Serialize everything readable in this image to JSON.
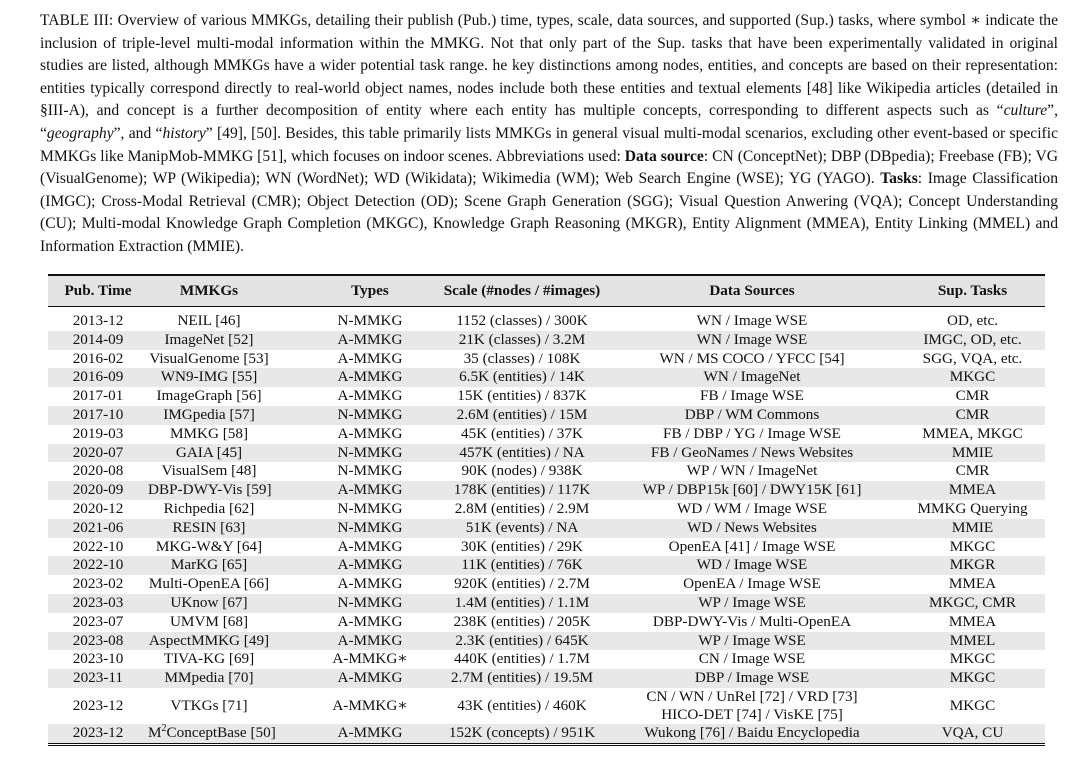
{
  "caption": {
    "label": "TABLE III:",
    "part1": " Overview of various MMKGs, detailing their publish (Pub.) time, types, scale, data sources, and supported (Sup.) tasks, where symbol ∗ indicate the inclusion of triple-level multi-modal information within the MMKG. Not that only part of the Sup. tasks that have been experimentally validated in original studies are listed, although MMKGs have a wider potential task range. he key distinctions among nodes, entities, and concepts are based on their representation: entities typically correspond directly to real-world object names, nodes include both these entities and textual elements [48] like Wikipedia articles (detailed in §III-A), and concept is a further decomposition of entity where each entity has multiple concepts, corresponding to different aspects such as “",
    "culture": "culture",
    "sep1": "”, “",
    "geography": "geography",
    "sep2": "”, and “",
    "history": "history",
    "part2": "” [49], [50]. Besides, this table primarily lists MMKGs in general visual multi-modal scenarios, excluding other event-based or specific MMKGs like ManipMob-MMKG [51], which focuses on indoor scenes. Abbreviations used: ",
    "data_source_label": "Data source",
    "part3": ": CN (ConceptNet); DBP (DBpedia); Freebase (FB); VG (VisualGenome); WP (Wikipedia); WN (WordNet); WD (Wikidata); Wikimedia (WM); Web Search Engine (WSE); YG (YAGO). ",
    "tasks_label": "Tasks",
    "part4": ": Image Classification (IMGC); Cross-Modal Retrieval (CMR); Object Detection (OD); Scene Graph Generation (SGG); Visual Question Anwering (VQA); Concept Understanding (CU); Multi-modal Knowledge Graph Completion (MKGC), Knowledge Graph Reasoning (MKGR), Entity Alignment (MMEA), Entity Linking (MMEL) and Information Extraction (MMIE)."
  },
  "table": {
    "headers": [
      "Pub. Time",
      "MMKGs",
      "Types",
      "Scale (#nodes / #images)",
      "Data Sources",
      "Sup. Tasks"
    ],
    "rows": [
      [
        "2013-12",
        "NEIL [46]",
        "N-MMKG",
        "1152 (classes) / 300K",
        "WN / Image WSE",
        "OD, etc."
      ],
      [
        "2014-09",
        "ImageNet [52]",
        "A-MMKG",
        "21K (classes) / 3.2M",
        "WN / Image WSE",
        "IMGC, OD, etc."
      ],
      [
        "2016-02",
        "VisualGenome [53]",
        "A-MMKG",
        "35 (classes) / 108K",
        "WN / MS COCO / YFCC [54]",
        "SGG, VQA, etc."
      ],
      [
        "2016-09",
        "WN9-IMG [55]",
        "A-MMKG",
        "6.5K (entities) / 14K",
        "WN / ImageNet",
        "MKGC"
      ],
      [
        "2017-01",
        "ImageGraph [56]",
        "A-MMKG",
        "15K (entities) / 837K",
        "FB / Image WSE",
        "CMR"
      ],
      [
        "2017-10",
        "IMGpedia [57]",
        "N-MMKG",
        "2.6M (entities) / 15M",
        "DBP / WM Commons",
        "CMR"
      ],
      [
        "2019-03",
        "MMKG [58]",
        "A-MMKG",
        "45K (entities) / 37K",
        "FB / DBP / YG / Image WSE",
        "MMEA, MKGC"
      ],
      [
        "2020-07",
        "GAIA [45]",
        "N-MMKG",
        "457K (entities) / NA",
        "FB / GeoNames / News Websites",
        "MMIE"
      ],
      [
        "2020-08",
        "VisualSem [48]",
        "N-MMKG",
        "90K (nodes) / 938K",
        "WP / WN / ImageNet",
        "CMR"
      ],
      [
        "2020-09",
        "DBP-DWY-Vis [59]",
        "A-MMKG",
        "178K (entities) / 117K",
        "WP / DBP15k [60] / DWY15K [61]",
        "MMEA"
      ],
      [
        "2020-12",
        "Richpedia [62]",
        "N-MMKG",
        "2.8M (entities) / 2.9M",
        "WD / WM / Image WSE",
        "MMKG Querying"
      ],
      [
        "2021-06",
        "RESIN [63]",
        "N-MMKG",
        "51K (events) / NA",
        "WD / News Websites",
        "MMIE"
      ],
      [
        "2022-10",
        "MKG-W&Y [64]",
        "A-MMKG",
        "30K (entities) / 29K",
        "OpenEA [41] / Image WSE",
        "MKGC"
      ],
      [
        "2022-10",
        "MarKG [65]",
        "A-MMKG",
        "11K (entities) / 76K",
        "WD / Image WSE",
        "MKGR"
      ],
      [
        "2023-02",
        "Multi-OpenEA [66]",
        "A-MMKG",
        "920K (entities) / 2.7M",
        "OpenEA / Image WSE",
        "MMEA"
      ],
      [
        "2023-03",
        "UKnow [67]",
        "N-MMKG",
        "1.4M (entities) / 1.1M",
        "WP / Image WSE",
        "MKGC, CMR"
      ],
      [
        "2023-07",
        "UMVM [68]",
        "A-MMKG",
        "238K (entities) / 205K",
        "DBP-DWY-Vis / Multi-OpenEA",
        "MMEA"
      ],
      [
        "2023-08",
        "AspectMMKG [49]",
        "A-MMKG",
        "2.3K (entities) / 645K",
        "WP / Image WSE",
        "MMEL"
      ],
      [
        "2023-10",
        "TIVA-KG [69]",
        "A-MMKG∗",
        "440K (entities) / 1.7M",
        "CN / Image WSE",
        "MKGC"
      ],
      [
        "2023-11",
        "MMpedia [70]",
        "A-MMKG",
        "2.7M (entities) / 19.5M",
        "DBP / Image WSE",
        "MKGC"
      ],
      [
        "2023-12",
        "VTKGs [71]",
        "A-MMKG∗",
        "43K (entities) / 460K",
        "CN / WN / UnRel [72] / VRD [73]",
        "MKGC"
      ],
      [
        "2023-12",
        "M²ConceptBase [50]",
        "A-MMKG",
        "152K (concepts) / 951K",
        "Wukong [76] / Baidu Encyclopedia",
        "VQA, CU"
      ]
    ],
    "vtkgs_sources_line2": "HICO-DET [74] / VisKE [75]",
    "m2_prefix": "M",
    "m2_sup": "2",
    "m2_rest": "ConceptBase [50]",
    "colors": {
      "header_bg": "#e3e3e3",
      "stripe_bg": "#e8e8e8"
    }
  }
}
